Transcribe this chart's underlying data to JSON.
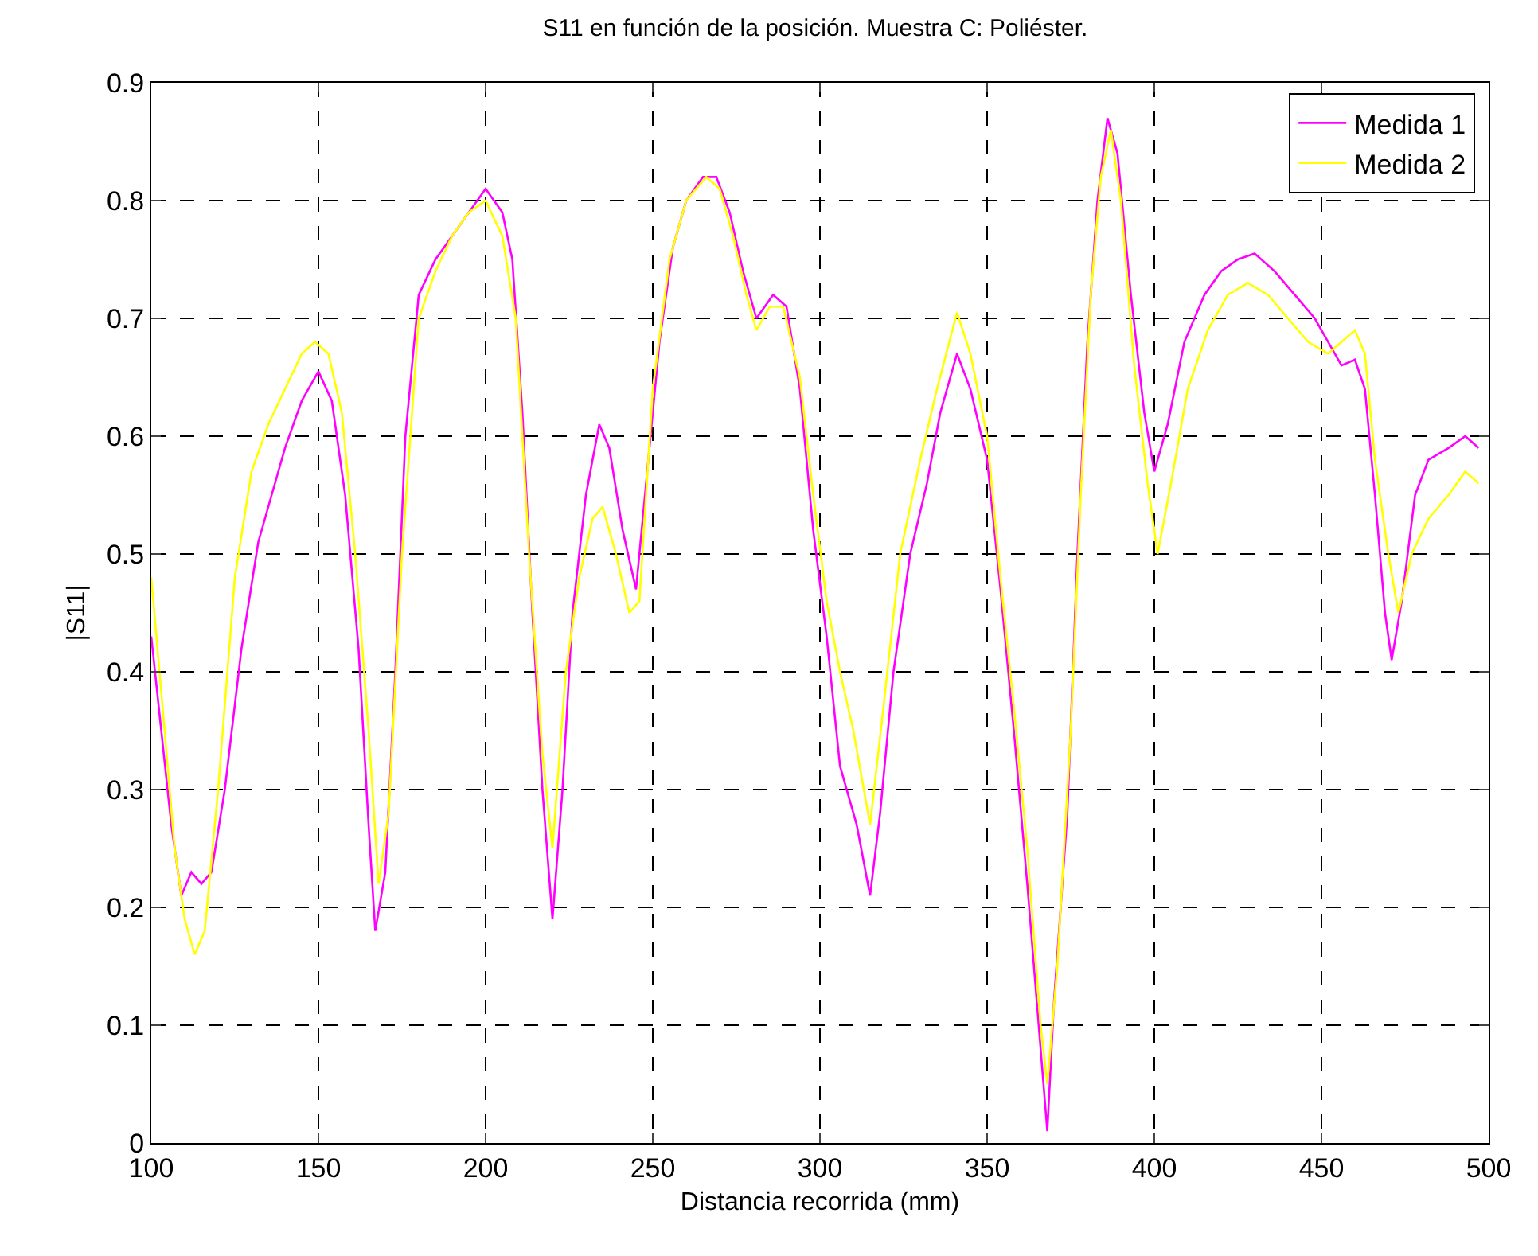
{
  "chart_data": {
    "type": "line",
    "title": "S11 en función de la posición. Muestra C: Poliéster.",
    "xlabel": "Distancia recorrida (mm)",
    "ylabel": "|S11|",
    "xlim": [
      100,
      500
    ],
    "xticks": [
      100,
      150,
      200,
      250,
      300,
      350,
      400,
      450,
      500
    ],
    "ylim": [
      0,
      0.9
    ],
    "yticks": [
      0,
      0.1,
      0.2,
      0.3,
      0.4,
      0.5,
      0.6,
      0.7,
      0.8,
      0.9
    ],
    "grid": true,
    "legend": "top right",
    "line_style": "solid",
    "marker": "none",
    "series": [
      {
        "name": "Medida 1",
        "color": "#ff00ff",
        "x": [
          100,
          103,
          106,
          109,
          112,
          115,
          118,
          122,
          127,
          132,
          136,
          140,
          145,
          150,
          154,
          158,
          162,
          165,
          167,
          170,
          173,
          176,
          180,
          185,
          190,
          195,
          200,
          205,
          208,
          211,
          214,
          217,
          220,
          223,
          226,
          230,
          234,
          237,
          241,
          245,
          248,
          252,
          256,
          260,
          265,
          269,
          273,
          277,
          281,
          286,
          290,
          294,
          298,
          302,
          306,
          311,
          315,
          318,
          322,
          327,
          332,
          336,
          341,
          345,
          350,
          354,
          358,
          362,
          366,
          368,
          370,
          374,
          377,
          380,
          383,
          386,
          389,
          393,
          397,
          400,
          404,
          409,
          415,
          420,
          425,
          430,
          436,
          442,
          448,
          452,
          456,
          460,
          463,
          466,
          469,
          471,
          474,
          478,
          482,
          488,
          493,
          497
        ],
        "values": [
          0.43,
          0.35,
          0.27,
          0.21,
          0.23,
          0.22,
          0.23,
          0.3,
          0.42,
          0.51,
          0.55,
          0.59,
          0.63,
          0.655,
          0.63,
          0.55,
          0.42,
          0.27,
          0.18,
          0.23,
          0.4,
          0.6,
          0.72,
          0.75,
          0.77,
          0.79,
          0.81,
          0.79,
          0.75,
          0.62,
          0.45,
          0.3,
          0.19,
          0.3,
          0.45,
          0.55,
          0.61,
          0.59,
          0.52,
          0.47,
          0.56,
          0.68,
          0.76,
          0.8,
          0.82,
          0.82,
          0.79,
          0.74,
          0.7,
          0.72,
          0.71,
          0.64,
          0.52,
          0.43,
          0.32,
          0.27,
          0.21,
          0.28,
          0.4,
          0.5,
          0.56,
          0.62,
          0.67,
          0.64,
          0.58,
          0.47,
          0.35,
          0.22,
          0.08,
          0.01,
          0.12,
          0.28,
          0.5,
          0.68,
          0.8,
          0.87,
          0.84,
          0.72,
          0.62,
          0.57,
          0.61,
          0.68,
          0.72,
          0.74,
          0.75,
          0.755,
          0.74,
          0.72,
          0.7,
          0.68,
          0.66,
          0.665,
          0.64,
          0.55,
          0.45,
          0.41,
          0.46,
          0.55,
          0.58,
          0.59,
          0.6,
          0.59
        ]
      },
      {
        "name": "Medida 2",
        "color": "#ffff00",
        "x": [
          100,
          104,
          107,
          110,
          113,
          116,
          120,
          125,
          130,
          135,
          140,
          145,
          149,
          153,
          157,
          161,
          165,
          168,
          171,
          175,
          180,
          185,
          190,
          195,
          200,
          205,
          209,
          213,
          217,
          220,
          224,
          228,
          232,
          235,
          239,
          243,
          246,
          250,
          255,
          260,
          266,
          270,
          274,
          278,
          281,
          285,
          289,
          294,
          298,
          302,
          306,
          310,
          315,
          319,
          324,
          330,
          335,
          341,
          345,
          350,
          354,
          358,
          362,
          366,
          368,
          371,
          375,
          378,
          381,
          384,
          387,
          390,
          394,
          398,
          401,
          405,
          410,
          416,
          422,
          428,
          434,
          440,
          446,
          452,
          456,
          460,
          463,
          466,
          470,
          473,
          477,
          482,
          488,
          493,
          497
        ],
        "values": [
          0.48,
          0.35,
          0.25,
          0.19,
          0.16,
          0.18,
          0.3,
          0.48,
          0.57,
          0.61,
          0.64,
          0.67,
          0.68,
          0.67,
          0.62,
          0.5,
          0.35,
          0.22,
          0.28,
          0.5,
          0.7,
          0.74,
          0.77,
          0.79,
          0.8,
          0.77,
          0.7,
          0.5,
          0.33,
          0.25,
          0.4,
          0.48,
          0.53,
          0.54,
          0.5,
          0.45,
          0.46,
          0.64,
          0.75,
          0.8,
          0.82,
          0.81,
          0.77,
          0.72,
          0.69,
          0.71,
          0.71,
          0.65,
          0.55,
          0.46,
          0.4,
          0.35,
          0.27,
          0.37,
          0.5,
          0.58,
          0.64,
          0.705,
          0.67,
          0.6,
          0.48,
          0.37,
          0.25,
          0.1,
          0.05,
          0.15,
          0.35,
          0.55,
          0.72,
          0.82,
          0.86,
          0.8,
          0.66,
          0.56,
          0.5,
          0.56,
          0.64,
          0.69,
          0.72,
          0.73,
          0.72,
          0.7,
          0.68,
          0.67,
          0.68,
          0.69,
          0.67,
          0.58,
          0.5,
          0.45,
          0.5,
          0.53,
          0.55,
          0.57,
          0.56
        ]
      }
    ]
  }
}
